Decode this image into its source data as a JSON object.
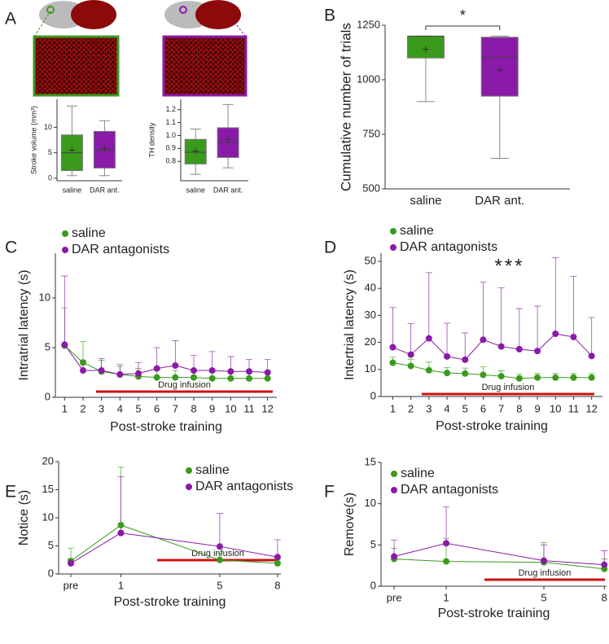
{
  "chart_data": [
    {
      "panel": "A",
      "type": "box",
      "ylabel": "Stroke volume (mm³)",
      "categories": [
        "saline",
        "DAR ant."
      ],
      "colors": [
        "#3a9a1c",
        "#8a1aa8"
      ],
      "boxes": [
        {
          "min": 0.5,
          "q1": 1.5,
          "median": 5,
          "q3": 8.5,
          "max": 14.2,
          "mean": 5.5
        },
        {
          "min": 0.5,
          "q1": 2,
          "median": 5.5,
          "q3": 9.2,
          "max": 11.3,
          "mean": 5.8
        }
      ],
      "ylim": [
        -0.5,
        15.5
      ],
      "yticks": [
        0,
        5,
        10
      ]
    },
    {
      "type": "box",
      "ylabel": "TH density",
      "categories": [
        "saline",
        "DAR ant."
      ],
      "colors": [
        "#3a9a1c",
        "#8a1aa8"
      ],
      "boxes": [
        {
          "min": 0.7,
          "q1": 0.78,
          "median": 0.87,
          "q3": 0.97,
          "max": 1.05,
          "mean": 0.88
        },
        {
          "min": 0.75,
          "q1": 0.83,
          "median": 0.95,
          "q3": 1.06,
          "max": 1.24,
          "mean": 0.97
        }
      ],
      "ylim": [
        0.65,
        1.28
      ],
      "yticks": [
        0.8,
        0.9,
        {
          "value": 1,
          "label": "1.0"
        },
        1.1,
        1.2
      ]
    },
    {
      "panel": "B",
      "type": "box",
      "ylabel": "Cumulative number of trials",
      "categories": [
        "saline",
        "DAR ant."
      ],
      "colors": [
        "#3a9a1c",
        "#8a1aa8"
      ],
      "boxes": [
        {
          "min": 900,
          "q1": 1100,
          "median": 1200,
          "q3": 1200,
          "max": 1200,
          "mean": 1140
        },
        {
          "min": 640,
          "q1": 925,
          "median": 1105,
          "q3": 1195,
          "max": 1200,
          "mean": 1045
        }
      ],
      "ylim": [
        500,
        1250
      ],
      "yticks": [
        500,
        750,
        1000,
        1250
      ],
      "significance": "*"
    },
    {
      "panel": "C",
      "type": "line",
      "ylabel": "Intratrial latency (s)",
      "xlabel": "Post-stroke training",
      "annotation": "Drug infusion",
      "x": [
        1,
        2,
        3,
        4,
        5,
        6,
        7,
        8,
        9,
        10,
        11,
        12
      ],
      "xlim": [
        0.5,
        12.5
      ],
      "xticks": [
        1,
        2,
        3,
        4,
        5,
        6,
        7,
        8,
        9,
        10,
        11,
        12
      ],
      "ylim": [
        0,
        14.5
      ],
      "yticks": [
        0,
        5,
        10
      ],
      "series": [
        {
          "name": "saline",
          "color": "#3a9a1c",
          "values": [
            5.2,
            3.5,
            2.6,
            2.3,
            2.1,
            2.0,
            2.0,
            2.0,
            1.9,
            1.9,
            1.9,
            1.9
          ],
          "errors": [
            3.8,
            2.1,
            1.1,
            0.8,
            0.8,
            0.7,
            0.7,
            0.7,
            0.7,
            0.7,
            0.7,
            0.7
          ]
        },
        {
          "name": "DAR antagonists",
          "color": "#8a1aa8",
          "values": [
            5.3,
            2.7,
            2.7,
            2.3,
            2.4,
            2.9,
            3.2,
            2.7,
            2.7,
            2.6,
            2.6,
            2.5
          ],
          "errors": [
            6.9,
            1.0,
            1.2,
            1.0,
            1.1,
            2.1,
            2.5,
            1.5,
            1.9,
            1.5,
            1.2,
            1.3
          ]
        }
      ]
    },
    {
      "panel": "D",
      "type": "line",
      "ylabel": "Intertrial latency (s)",
      "xlabel": "Post-stroke training",
      "annotation": "Drug infusion",
      "significance": "***",
      "x": [
        1,
        2,
        3,
        4,
        5,
        6,
        7,
        8,
        9,
        10,
        11,
        12
      ],
      "xlim": [
        0.35,
        12.6
      ],
      "xticks": [
        1,
        2,
        3,
        4,
        5,
        6,
        7,
        8,
        9,
        10,
        11,
        12
      ],
      "ylim": [
        0,
        53
      ],
      "yticks": [
        0,
        10,
        20,
        30,
        40,
        50
      ],
      "series": [
        {
          "name": "saline",
          "color": "#3a9a1c",
          "values": [
            12.5,
            11.3,
            9.7,
            8.7,
            8.5,
            8.0,
            7.5,
            6.7,
            7.0,
            7.0,
            7.0,
            7.0
          ],
          "errors": [
            2.0,
            2.5,
            3.0,
            2.0,
            2.0,
            3.0,
            2.0,
            1.5,
            1.5,
            1.5,
            1.5,
            1.5
          ]
        },
        {
          "name": "DAR antagonists",
          "color": "#8a1aa8",
          "values": [
            18.2,
            15.5,
            21.5,
            14.8,
            13.6,
            21.0,
            18.5,
            17.5,
            16.8,
            23.2,
            22.0,
            15.0
          ],
          "errors": [
            14.7,
            11.5,
            24.3,
            12.3,
            9.9,
            21.3,
            21.7,
            15.0,
            16.6,
            28.1,
            22.5,
            14.2
          ]
        }
      ]
    },
    {
      "panel": "E",
      "type": "line",
      "ylabel": "Notice (s)",
      "xlabel": "Post-stroke training",
      "annotation": "Drug infusion",
      "categories": [
        "pre",
        "1",
        "5",
        "8"
      ],
      "ylim": [
        0,
        20
      ],
      "yticks": [
        0,
        5,
        10,
        15,
        20
      ],
      "series": [
        {
          "name": "saline",
          "color": "#3a9a1c",
          "values": [
            2.3,
            8.7,
            2.5,
            1.9
          ],
          "errors": [
            2.3,
            10.3,
            1.2,
            0.6
          ]
        },
        {
          "name": "DAR antagonists",
          "color": "#8a1aa8",
          "values": [
            1.9,
            7.3,
            4.9,
            3.0
          ],
          "errors": [
            0.8,
            10.0,
            5.9,
            3.1
          ]
        }
      ]
    },
    {
      "panel": "F",
      "type": "line",
      "ylabel": "Remove(s)",
      "xlabel": "Post-stroke training",
      "annotation": "Drug infusion",
      "categories": [
        "pre",
        "1",
        "5",
        "8"
      ],
      "ylim": [
        0,
        15
      ],
      "yticks": [
        0,
        5,
        10,
        15
      ],
      "series": [
        {
          "name": "saline",
          "color": "#3a9a1c",
          "values": [
            3.3,
            3.0,
            2.9,
            2.1
          ],
          "errors": [
            1.3,
            2.8,
            2.4,
            1.2
          ]
        },
        {
          "name": "DAR antagonists",
          "color": "#8a1aa8",
          "values": [
            3.6,
            5.2,
            3.1,
            2.6
          ],
          "errors": [
            2.0,
            4.4,
            1.9,
            1.7
          ]
        }
      ]
    }
  ]
}
